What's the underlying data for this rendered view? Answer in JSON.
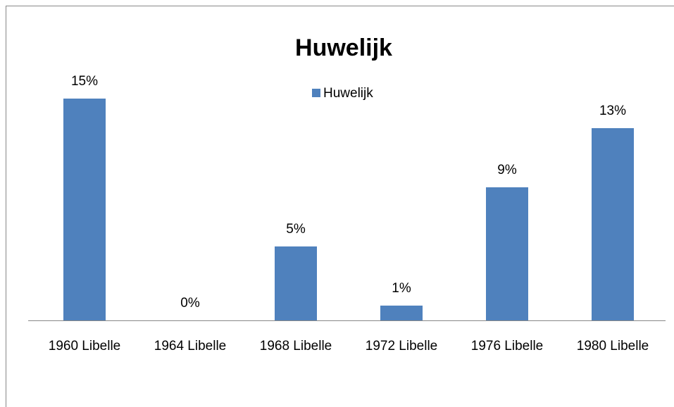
{
  "chart_data": {
    "type": "bar",
    "title": "Huwelijk",
    "categories": [
      "1960 Libelle",
      "1964 Libelle",
      "1968 Libelle",
      "1972 Libelle",
      "1976 Libelle",
      "1980 Libelle"
    ],
    "series": [
      {
        "name": "Huwelijk",
        "color": "#4f81bd",
        "values": [
          15,
          0,
          5,
          1,
          9,
          13
        ],
        "value_labels": [
          "15%",
          "0%",
          "5%",
          "1%",
          "9%",
          "13%"
        ]
      }
    ],
    "legend": "top"
  }
}
